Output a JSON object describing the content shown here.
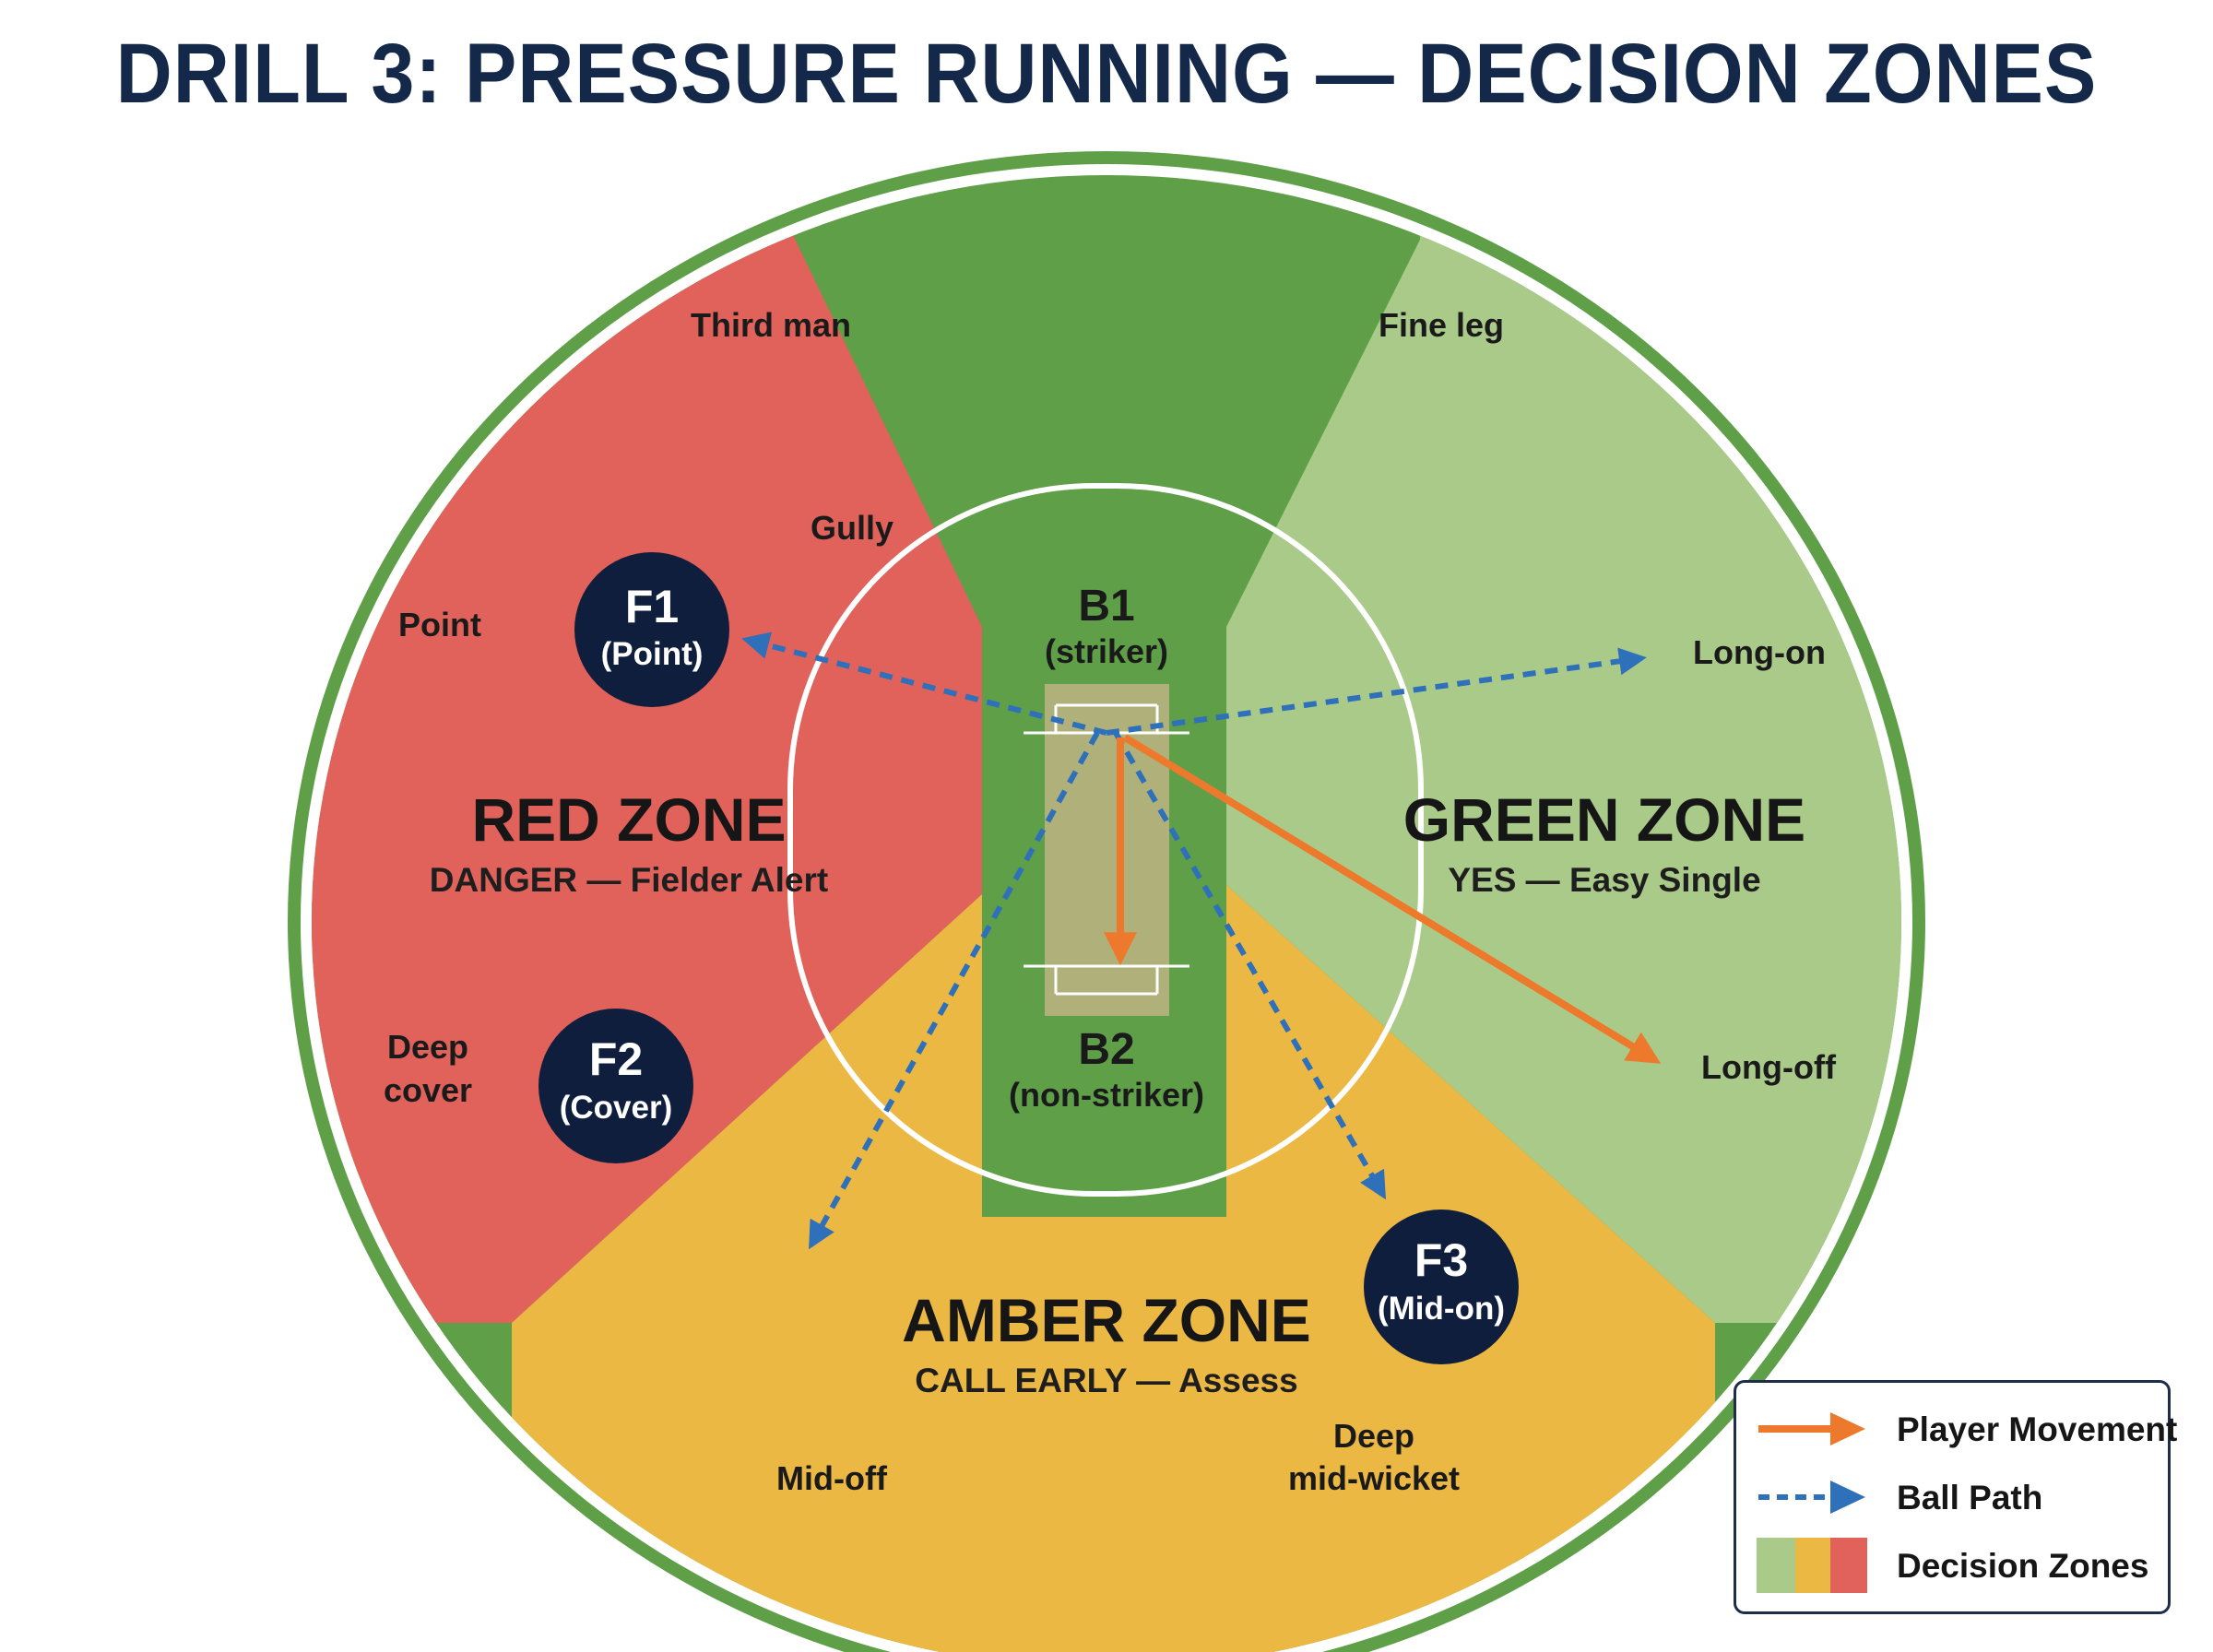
{
  "title": "DRILL 3: PRESSURE RUNNING — DECISION ZONES",
  "colors": {
    "outfield_green": "#5e9f48",
    "red_zone": "#e0625a",
    "green_zone": "#a9ca88",
    "amber_zone": "#ebb843",
    "fielder_dark": "#0f1e3c",
    "player_movement": "#ed7a2c",
    "ball_path": "#2f70ba",
    "pitch": "#b0b07a"
  },
  "zones": {
    "red": {
      "title": "RED ZONE",
      "subtitle": "DANGER — Fielder Alert"
    },
    "green": {
      "title": "GREEN ZONE",
      "subtitle": "YES — Easy Single"
    },
    "amber": {
      "title": "AMBER ZONE",
      "subtitle": "CALL EARLY — Assess"
    }
  },
  "positions": {
    "third_man": "Third man",
    "fine_leg": "Fine leg",
    "gully": "Gully",
    "point": "Point",
    "long_on": "Long-on",
    "deep_cover": [
      "Deep",
      "cover"
    ],
    "long_off": "Long-off",
    "mid_off": "Mid-off",
    "deep_mid_wicket": [
      "Deep",
      "mid-wicket"
    ]
  },
  "fielders": {
    "f1": {
      "id": "F1",
      "role": "(Point)"
    },
    "f2": {
      "id": "F2",
      "role": "(Cover)"
    },
    "f3": {
      "id": "F3",
      "role": "(Mid-on)"
    }
  },
  "batters": {
    "b1": {
      "id": "B1",
      "role": "(striker)"
    },
    "b2": {
      "id": "B2",
      "role": "(non-striker)"
    }
  },
  "legend": {
    "player_movement": "Player Movement",
    "ball_path": "Ball Path",
    "decision_zones": "Decision Zones"
  }
}
